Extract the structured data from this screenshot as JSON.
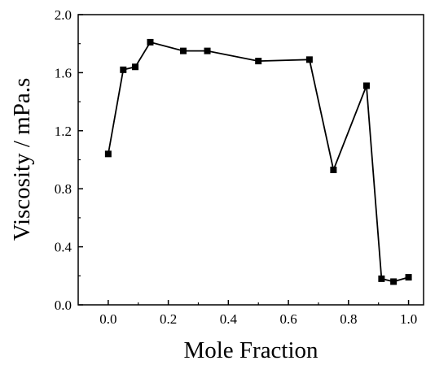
{
  "chart_data": {
    "type": "line",
    "xlabel": "Mole Fraction",
    "ylabel": "Viscosity / mPa.s",
    "xlim": [
      -0.1,
      1.05
    ],
    "ylim": [
      0.0,
      2.0
    ],
    "xticks": [
      0.0,
      0.2,
      0.4,
      0.6,
      0.8,
      1.0
    ],
    "xtick_labels": [
      "0.0",
      "0.2",
      "0.4",
      "0.6",
      "0.8",
      "1.0"
    ],
    "yticks": [
      0.0,
      0.4,
      0.8,
      1.2,
      1.6,
      2.0
    ],
    "ytick_labels": [
      "0.0",
      "0.4",
      "0.8",
      "1.2",
      "1.6",
      "2.0"
    ],
    "grid": false,
    "marker": "square",
    "series": [
      {
        "x": [
          0.0,
          0.05,
          0.09,
          0.14,
          0.25,
          0.33,
          0.5,
          0.67,
          0.75,
          0.86,
          0.91,
          0.95,
          1.0
        ],
        "y": [
          1.04,
          1.62,
          1.64,
          1.81,
          1.75,
          1.75,
          1.68,
          1.69,
          0.93,
          1.51,
          0.18,
          0.16,
          0.19
        ]
      }
    ],
    "colors": {
      "line": "#000000",
      "marker": "#000000"
    }
  }
}
